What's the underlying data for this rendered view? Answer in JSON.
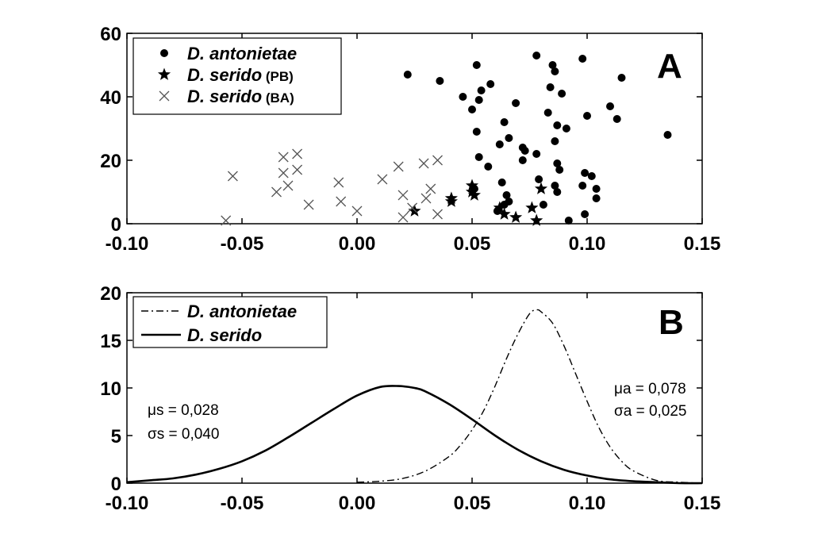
{
  "chart_data": [
    {
      "type": "scatter",
      "panel_label": "A",
      "xlim": [
        -0.1,
        0.15
      ],
      "ylim": [
        0,
        60
      ],
      "x_ticks": [
        "-0.10",
        "-0.05",
        "0.00",
        "0.05",
        "0.10",
        "0.15"
      ],
      "y_ticks": [
        "0",
        "20",
        "40",
        "60"
      ],
      "legend_placement": "top-left",
      "series": [
        {
          "name": "D. antonietae",
          "suffix": "",
          "marker": "circle",
          "points": [
            [
              0.022,
              47
            ],
            [
              0.036,
              45
            ],
            [
              0.046,
              40
            ],
            [
              0.05,
              36
            ],
            [
              0.052,
              50
            ],
            [
              0.053,
              39
            ],
            [
              0.054,
              42
            ],
            [
              0.058,
              44
            ],
            [
              0.052,
              29
            ],
            [
              0.053,
              21
            ],
            [
              0.057,
              18
            ],
            [
              0.062,
              25
            ],
            [
              0.064,
              32
            ],
            [
              0.066,
              27
            ],
            [
              0.069,
              38
            ],
            [
              0.072,
              24
            ],
            [
              0.072,
              20
            ],
            [
              0.073,
              23
            ],
            [
              0.078,
              53
            ],
            [
              0.078,
              22
            ],
            [
              0.079,
              14
            ],
            [
              0.083,
              35
            ],
            [
              0.084,
              43
            ],
            [
              0.085,
              50
            ],
            [
              0.086,
              48
            ],
            [
              0.086,
              26
            ],
            [
              0.087,
              31
            ],
            [
              0.087,
              19
            ],
            [
              0.087,
              10
            ],
            [
              0.088,
              17
            ],
            [
              0.089,
              41
            ],
            [
              0.091,
              30
            ],
            [
              0.098,
              52
            ],
            [
              0.098,
              12
            ],
            [
              0.099,
              16
            ],
            [
              0.1,
              34
            ],
            [
              0.102,
              15
            ],
            [
              0.104,
              11
            ],
            [
              0.104,
              8
            ],
            [
              0.11,
              37
            ],
            [
              0.113,
              33
            ],
            [
              0.115,
              46
            ],
            [
              0.135,
              28
            ],
            [
              0.063,
              13
            ],
            [
              0.065,
              9
            ],
            [
              0.066,
              7
            ],
            [
              0.061,
              4
            ],
            [
              0.064,
              6
            ],
            [
              0.081,
              6
            ],
            [
              0.092,
              1
            ],
            [
              0.099,
              3
            ],
            [
              0.051,
              11
            ],
            [
              0.086,
              12
            ]
          ]
        },
        {
          "name": "D. serido",
          "suffix": "(PB)",
          "marker": "star",
          "points": [
            [
              0.025,
              4
            ],
            [
              0.041,
              8
            ],
            [
              0.041,
              7
            ],
            [
              0.05,
              10
            ],
            [
              0.051,
              9
            ],
            [
              0.062,
              5
            ],
            [
              0.064,
              3
            ],
            [
              0.069,
              2
            ],
            [
              0.076,
              5
            ],
            [
              0.078,
              1
            ],
            [
              0.08,
              11
            ],
            [
              0.05,
              12
            ]
          ]
        },
        {
          "name": "D. serido",
          "suffix": "(BA)",
          "marker": "x",
          "points": [
            [
              -0.057,
              1
            ],
            [
              -0.054,
              15
            ],
            [
              -0.035,
              10
            ],
            [
              -0.032,
              16
            ],
            [
              -0.032,
              21
            ],
            [
              -0.03,
              12
            ],
            [
              -0.026,
              17
            ],
            [
              -0.026,
              22
            ],
            [
              -0.021,
              6
            ],
            [
              -0.008,
              13
            ],
            [
              -0.007,
              7
            ],
            [
              0.0,
              4
            ],
            [
              0.011,
              14
            ],
            [
              0.018,
              18
            ],
            [
              0.02,
              9
            ],
            [
              0.02,
              2
            ],
            [
              0.029,
              19
            ],
            [
              0.03,
              8
            ],
            [
              0.032,
              11
            ],
            [
              0.035,
              20
            ],
            [
              0.035,
              3
            ],
            [
              0.024,
              5
            ]
          ]
        }
      ]
    },
    {
      "type": "line",
      "panel_label": "B",
      "xlim": [
        -0.1,
        0.15
      ],
      "ylim": [
        0,
        20
      ],
      "x_ticks": [
        "-0.10",
        "-0.05",
        "0.00",
        "0.05",
        "0.10",
        "0.15"
      ],
      "y_ticks": [
        "0",
        "5",
        "10",
        "15",
        "20"
      ],
      "legend_placement": "top-left",
      "series": [
        {
          "name": "D. antonietae",
          "style": "dash-dot",
          "x": [
            0.0,
            0.01,
            0.02,
            0.03,
            0.04,
            0.045,
            0.05,
            0.055,
            0.06,
            0.065,
            0.07,
            0.075,
            0.078,
            0.08,
            0.085,
            0.09,
            0.095,
            0.1,
            0.105,
            0.11,
            0.115,
            0.12,
            0.13,
            0.14,
            0.15
          ],
          "y": [
            0.1,
            0.2,
            0.5,
            1.3,
            2.8,
            4.0,
            5.6,
            7.6,
            10.2,
            13.1,
            15.7,
            17.8,
            18.2,
            18.0,
            16.8,
            14.4,
            11.5,
            8.6,
            5.9,
            3.8,
            2.3,
            1.3,
            0.3,
            0.1,
            0.0
          ]
        },
        {
          "name": "D. serido",
          "style": "solid",
          "x": [
            -0.1,
            -0.09,
            -0.08,
            -0.07,
            -0.06,
            -0.05,
            -0.04,
            -0.03,
            -0.02,
            -0.01,
            0.0,
            0.01,
            0.018,
            0.025,
            0.03,
            0.04,
            0.05,
            0.06,
            0.07,
            0.08,
            0.09,
            0.1,
            0.11,
            0.12,
            0.13,
            0.14,
            0.15
          ],
          "y": [
            0.1,
            0.3,
            0.5,
            0.9,
            1.5,
            2.3,
            3.4,
            4.8,
            6.3,
            7.8,
            9.2,
            10.1,
            10.2,
            10.0,
            9.6,
            8.3,
            6.7,
            5.0,
            3.5,
            2.3,
            1.4,
            0.8,
            0.4,
            0.2,
            0.1,
            0.0,
            0.0
          ]
        }
      ],
      "annotations": {
        "serido": [
          "μs = 0,028",
          "σs = 0,040"
        ],
        "antonietae": [
          "μa = 0,078",
          "σa = 0,025"
        ]
      }
    }
  ]
}
